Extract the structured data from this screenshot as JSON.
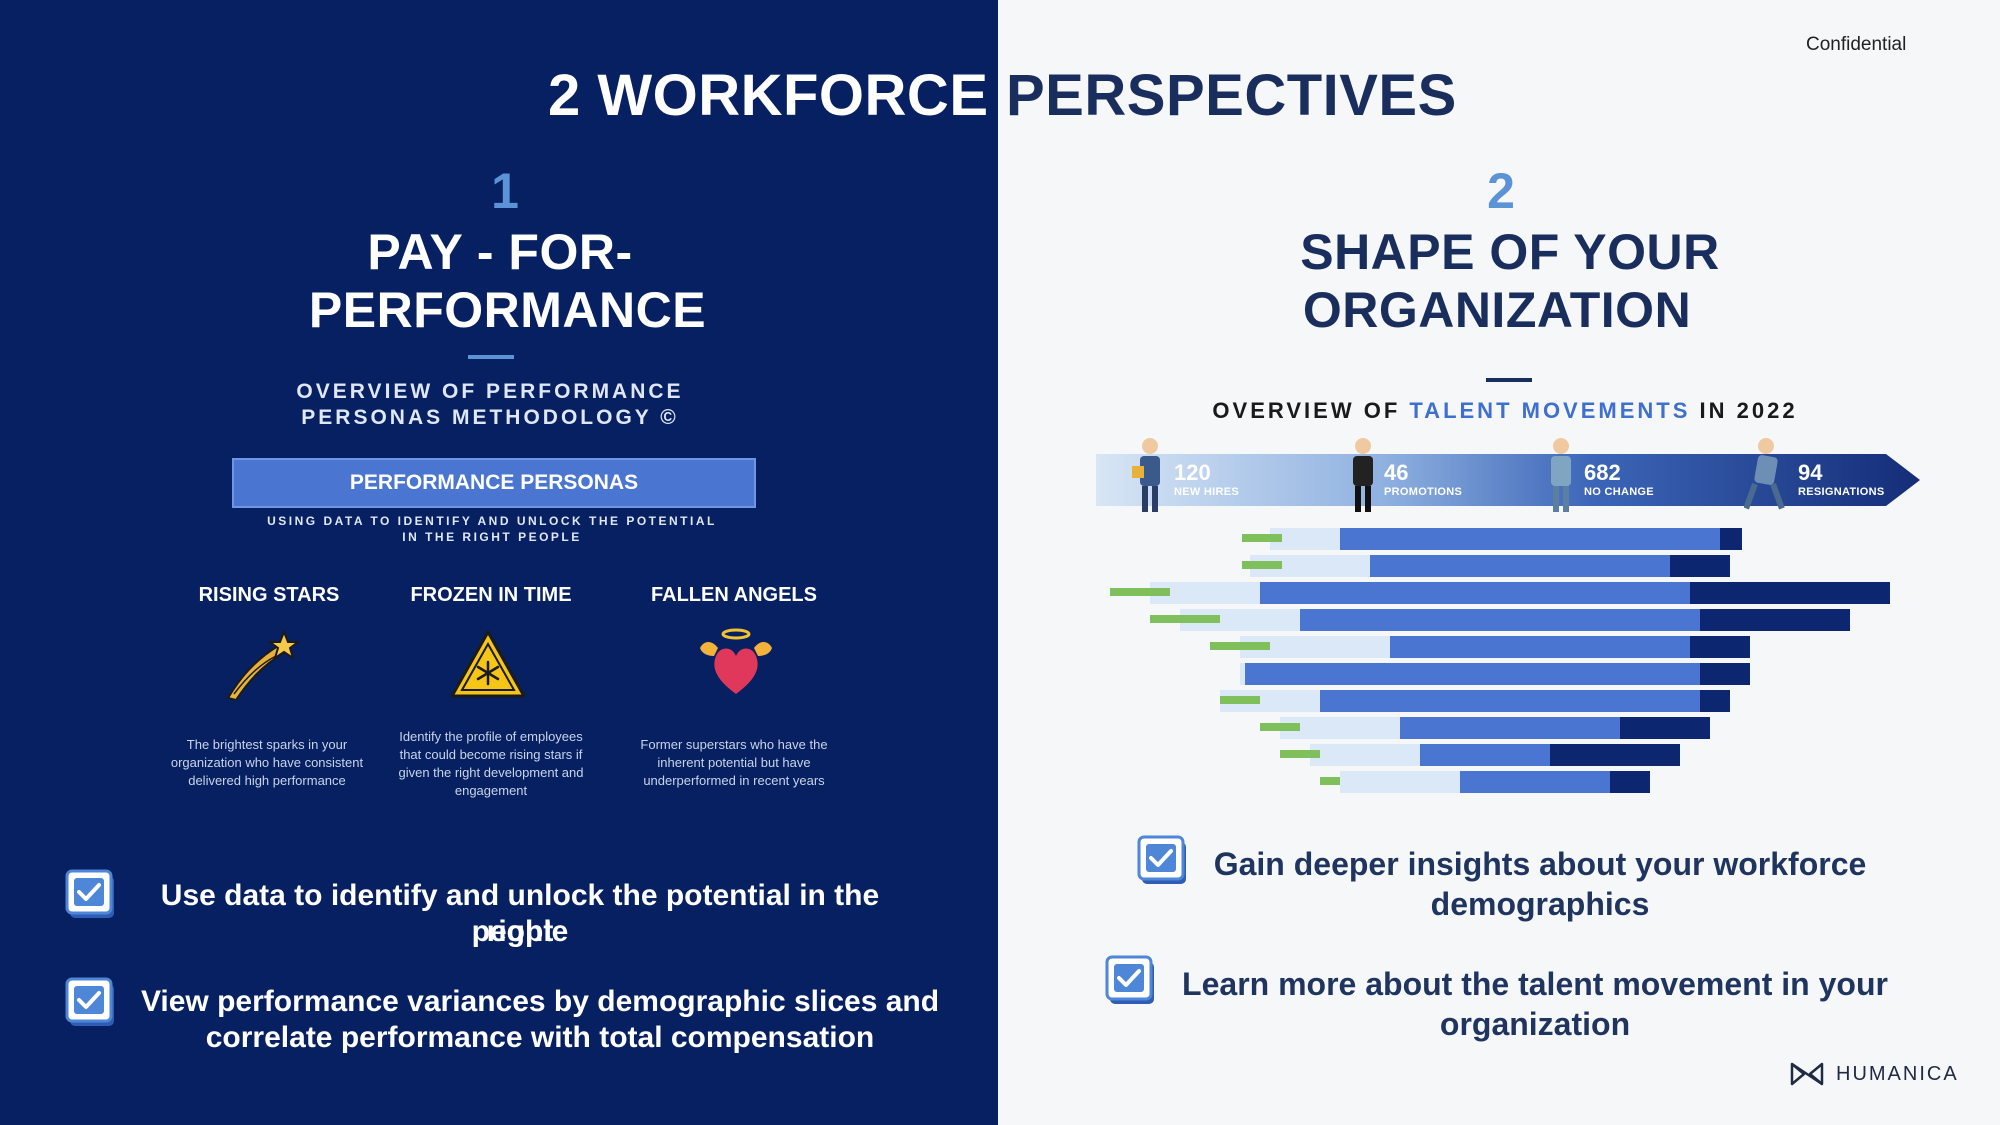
{
  "header": {
    "title_left": "2 WORKFORCE",
    "title_right": "PERSPECTIVES",
    "confidential": "Confidential"
  },
  "left": {
    "number": "1",
    "title_line1": "PAY - FOR-",
    "title_line2": "PERFORMANCE",
    "overview_line1": "OVERVIEW OF PERFORMANCE",
    "overview_line2": "PERSONAS METHODOLOGY ©",
    "personas_bar": "PERFORMANCE PERSONAS",
    "using_line1": "USING DATA TO IDENTIFY AND UNLOCK THE POTENTIAL",
    "using_line2": "IN THE RIGHT PEOPLE",
    "personas": [
      {
        "name": "RISING STARS",
        "icon": "shooting-star-icon",
        "desc": "The brightest sparks in your organization who have consistent delivered high performance"
      },
      {
        "name": "FROZEN IN TIME",
        "icon": "snowflake-warning-icon",
        "desc": "Identify the profile of employees that could become rising stars if given the right development and engagement"
      },
      {
        "name": "FALLEN ANGELS",
        "icon": "winged-heart-icon",
        "desc": "Former superstars who have the inherent potential but have underperformed in recent years"
      }
    ],
    "bullets": [
      {
        "line1": "Use data to identify and unlock the potential in the right",
        "line2": "people"
      },
      {
        "line1": "View performance variances by demographic slices and",
        "line2": "correlate performance with total compensation"
      }
    ]
  },
  "right": {
    "number": "2",
    "title_line1": "SHAPE OF YOUR",
    "title_line2": "ORGANIZATION",
    "overview_a": "OVERVIEW OF ",
    "overview_b": "TALENT MOVEMENTS",
    "overview_c": " IN 2022",
    "stats": [
      {
        "value": "120",
        "label": "NEW HIRES"
      },
      {
        "value": "46",
        "label": "PROMOTIONS"
      },
      {
        "value": "682",
        "label": "NO CHANGE"
      },
      {
        "value": "94",
        "label": "RESIGNATIONS"
      }
    ],
    "bullets": [
      {
        "line1": "Gain deeper insights about your workforce",
        "line2": "demographics"
      },
      {
        "line1": "Learn more about the talent movement in your",
        "line2": "organization"
      }
    ],
    "logo_text": "HUMANICA"
  },
  "colors": {
    "navy": "#062061",
    "accent_blue": "#5b93d6",
    "bar_blue": "#4a76d1",
    "dark_text": "#1f355f"
  }
}
